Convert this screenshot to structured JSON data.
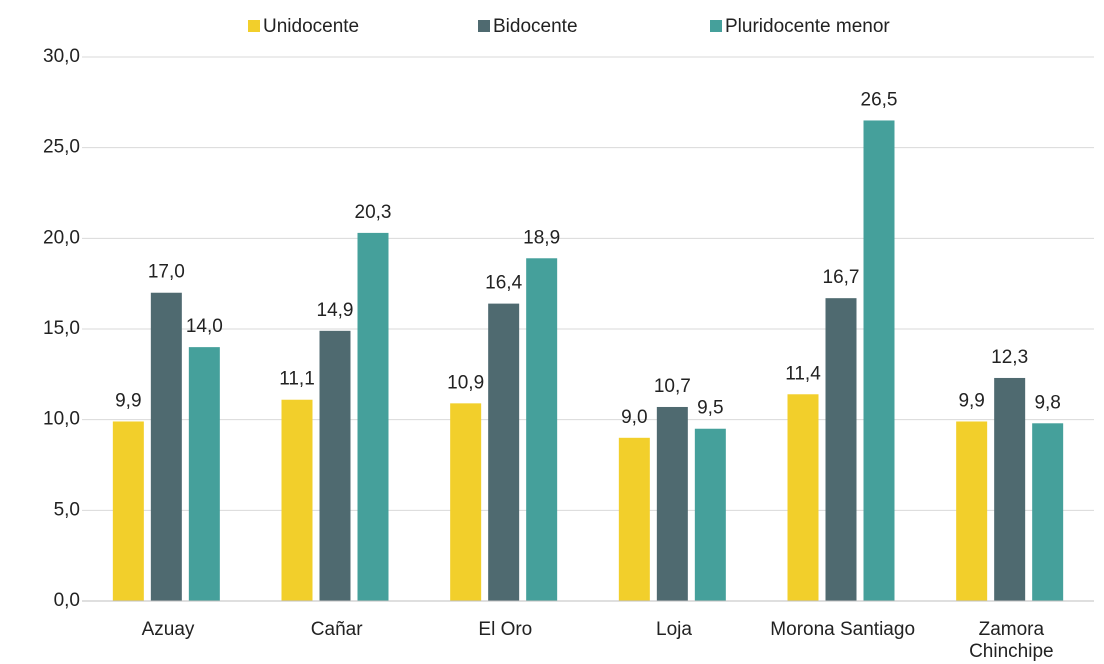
{
  "chart_data": {
    "type": "bar",
    "categories": [
      "Azuay",
      "Cañar",
      "El Oro",
      "Loja",
      "Morona Santiago",
      "Zamora\nChinchipe"
    ],
    "series": [
      {
        "name": "Unidocente",
        "color": "#f2cf2b",
        "values": [
          9.9,
          11.1,
          10.9,
          9.0,
          11.4,
          9.9
        ],
        "value_labels": [
          "9,9",
          "11,1",
          "10,9",
          "9,0",
          "11,4",
          "9,9"
        ]
      },
      {
        "name": "Bidocente",
        "color": "#4f6a70",
        "values": [
          17.0,
          14.9,
          16.4,
          10.7,
          16.7,
          12.3
        ],
        "value_labels": [
          "17,0",
          "14,9",
          "16,4",
          "10,7",
          "16,7",
          "12,3"
        ]
      },
      {
        "name": "Pluridocente menor",
        "color": "#45a09b",
        "values": [
          14.0,
          20.3,
          18.9,
          9.5,
          26.5,
          9.8
        ],
        "value_labels": [
          "14,0",
          "20,3",
          "18,9",
          "9,5",
          "26,5",
          "9,8"
        ]
      }
    ],
    "ylim": [
      0,
      30
    ],
    "yticks": [
      {
        "value": 0,
        "label": "0,0"
      },
      {
        "value": 5,
        "label": "5,0"
      },
      {
        "value": 10,
        "label": "10,0"
      },
      {
        "value": 15,
        "label": "15,0"
      },
      {
        "value": 20,
        "label": "20,0"
      },
      {
        "value": 25,
        "label": "25,0"
      },
      {
        "value": 30,
        "label": "30,0"
      }
    ],
    "grid": true,
    "legend": "top"
  }
}
